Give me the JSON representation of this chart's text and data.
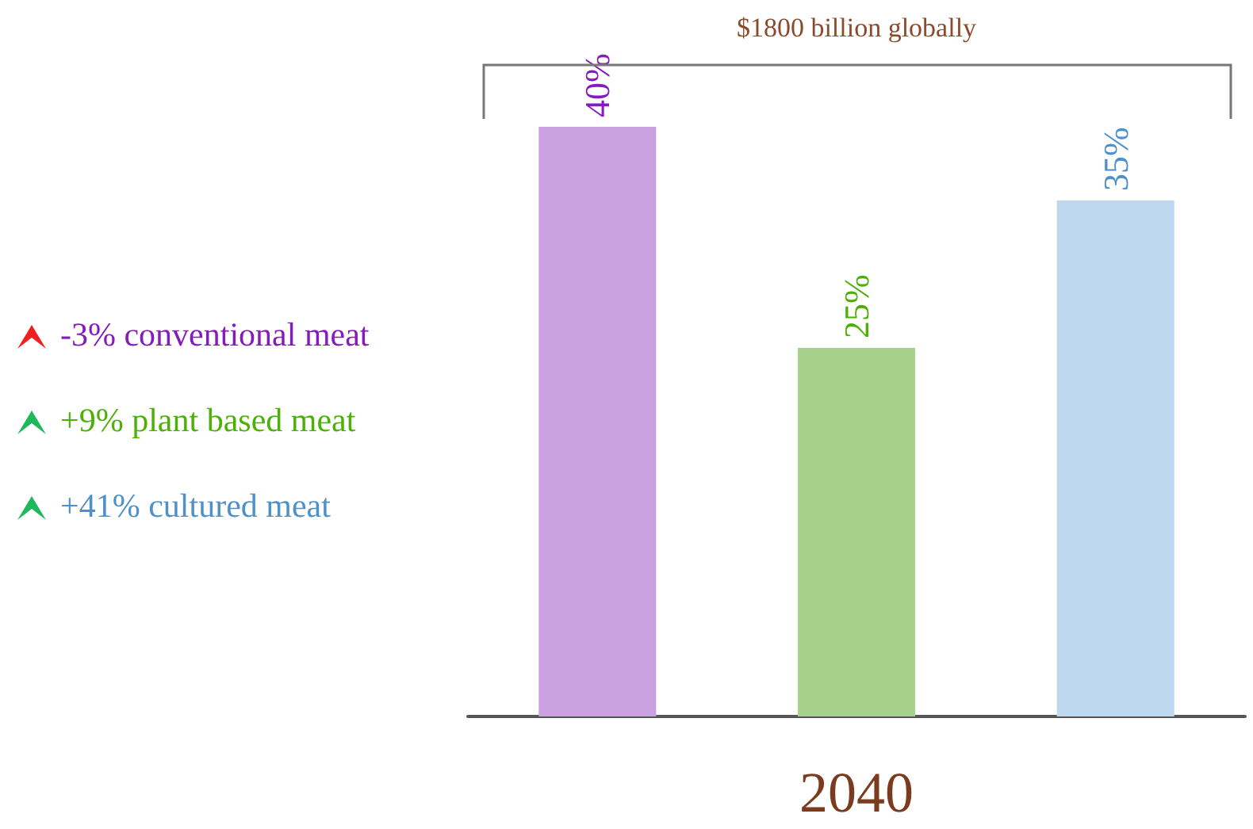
{
  "chart_data": {
    "type": "bar",
    "xlabel": "2040",
    "categories": [
      null,
      null,
      null
    ],
    "values": [
      40,
      25,
      35
    ],
    "colors": [
      "#c9a0e0",
      "#a8d08d",
      "#bdd7ee"
    ],
    "value_labels": [
      "40%",
      "25%",
      "35%"
    ],
    "annotations": [
      "$1800 billion globally",
      "-3% conventional meat",
      "+9% plant based meat",
      "+41% cultured meat"
    ]
  }
}
